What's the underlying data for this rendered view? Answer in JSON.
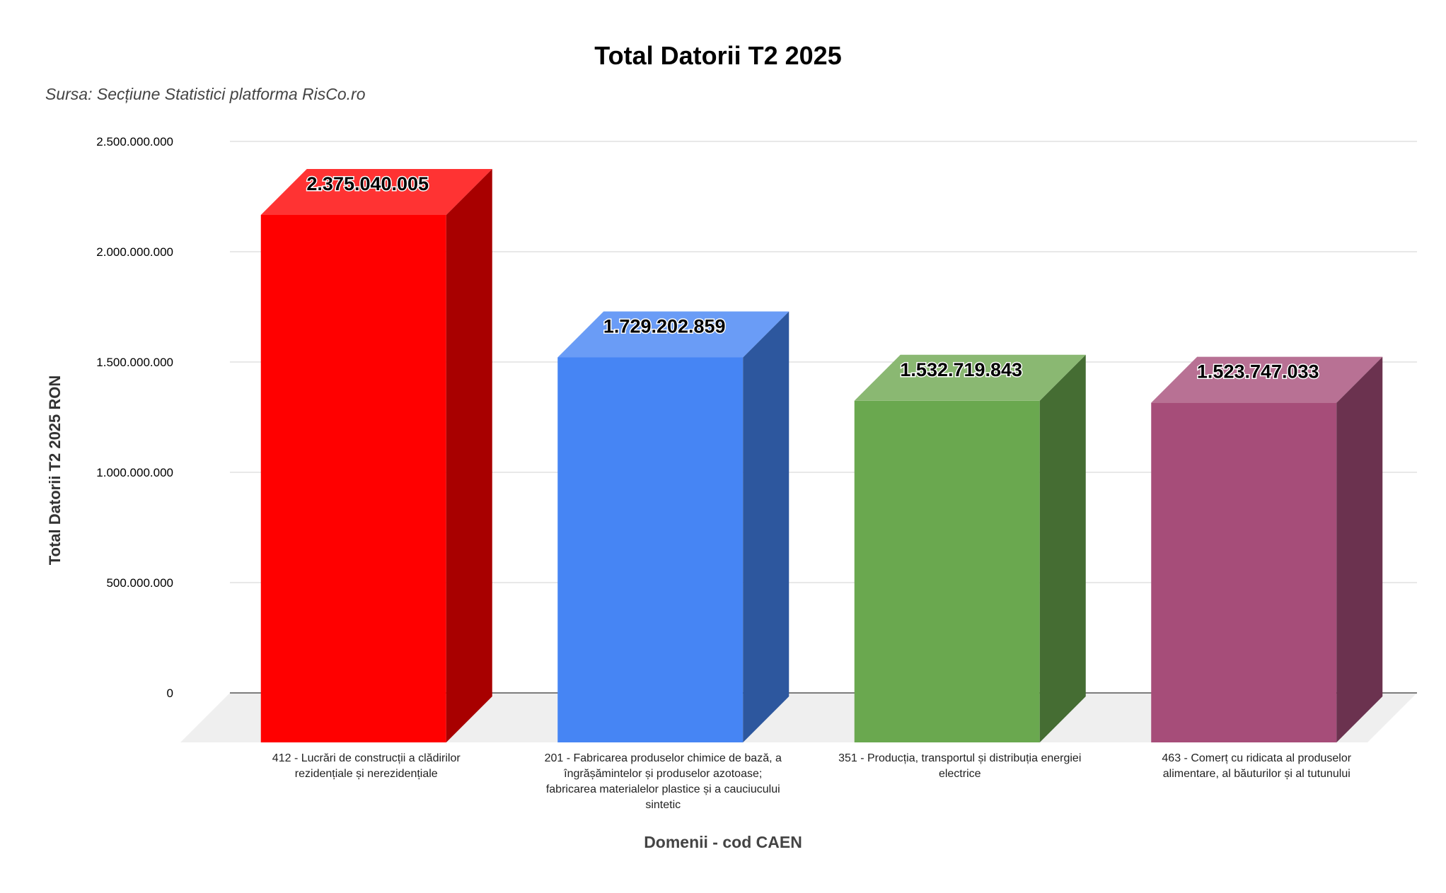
{
  "chart_data": {
    "type": "bar",
    "title": "Total Datorii T2 2025",
    "subtitle": "Sursa: Secțiune Statistici platforma RisCo.ro",
    "xlabel": "Domenii - cod CAEN",
    "ylabel": "Total Datorii T2 2025 RON",
    "ylim": [
      0,
      2500000000
    ],
    "yticks": [
      0,
      500000000,
      1000000000,
      1500000000,
      2000000000,
      2500000000
    ],
    "ytick_labels": [
      "0",
      "500.000.000",
      "1.000.000.000",
      "1.500.000.000",
      "2.000.000.000",
      "2.500.000.000"
    ],
    "grid": true,
    "style": "3d",
    "categories": [
      "412 - Lucrări de construcții a clădirilor rezidențiale și nerezidențiale",
      "201 - Fabricarea produselor chimice de bază, a îngrășămintelor și produselor azotoase; fabricarea materialelor plastice și a cauciucului sintetic",
      "351 - Producția, transportul și distribuția energiei electrice",
      "463 - Comerț cu ridicata al produselor alimentare, al băuturilor și al tutunului"
    ],
    "category_lines": [
      [
        "412 - Lucrări de construcții a clădirilor",
        "rezidențiale și nerezidențiale"
      ],
      [
        "201 - Fabricarea produselor chimice de bază, a",
        "îngrășămintelor și produselor azotoase;",
        "fabricarea materialelor plastice și a cauciucului",
        "sintetic"
      ],
      [
        "351 - Producția, transportul și distribuția energiei",
        "electrice"
      ],
      [
        "463 - Comerț cu ridicata al produselor",
        "alimentare, al băuturilor și al tutunului"
      ]
    ],
    "values": [
      2375040005,
      1729202859,
      1532719843,
      1523747033
    ],
    "value_labels": [
      "2.375.040.005",
      "1.729.202.859",
      "1.532.719.843",
      "1.523.747.033"
    ],
    "colors": [
      {
        "front": "#ff0000",
        "top": "#ff3333",
        "side": "#a80000"
      },
      {
        "front": "#4685f4",
        "top": "#6a9cf6",
        "side": "#2d579e"
      },
      {
        "front": "#6aa84f",
        "top": "#8ab872",
        "side": "#456d33"
      },
      {
        "front": "#a64d79",
        "top": "#b87194",
        "side": "#6b324f"
      }
    ]
  }
}
